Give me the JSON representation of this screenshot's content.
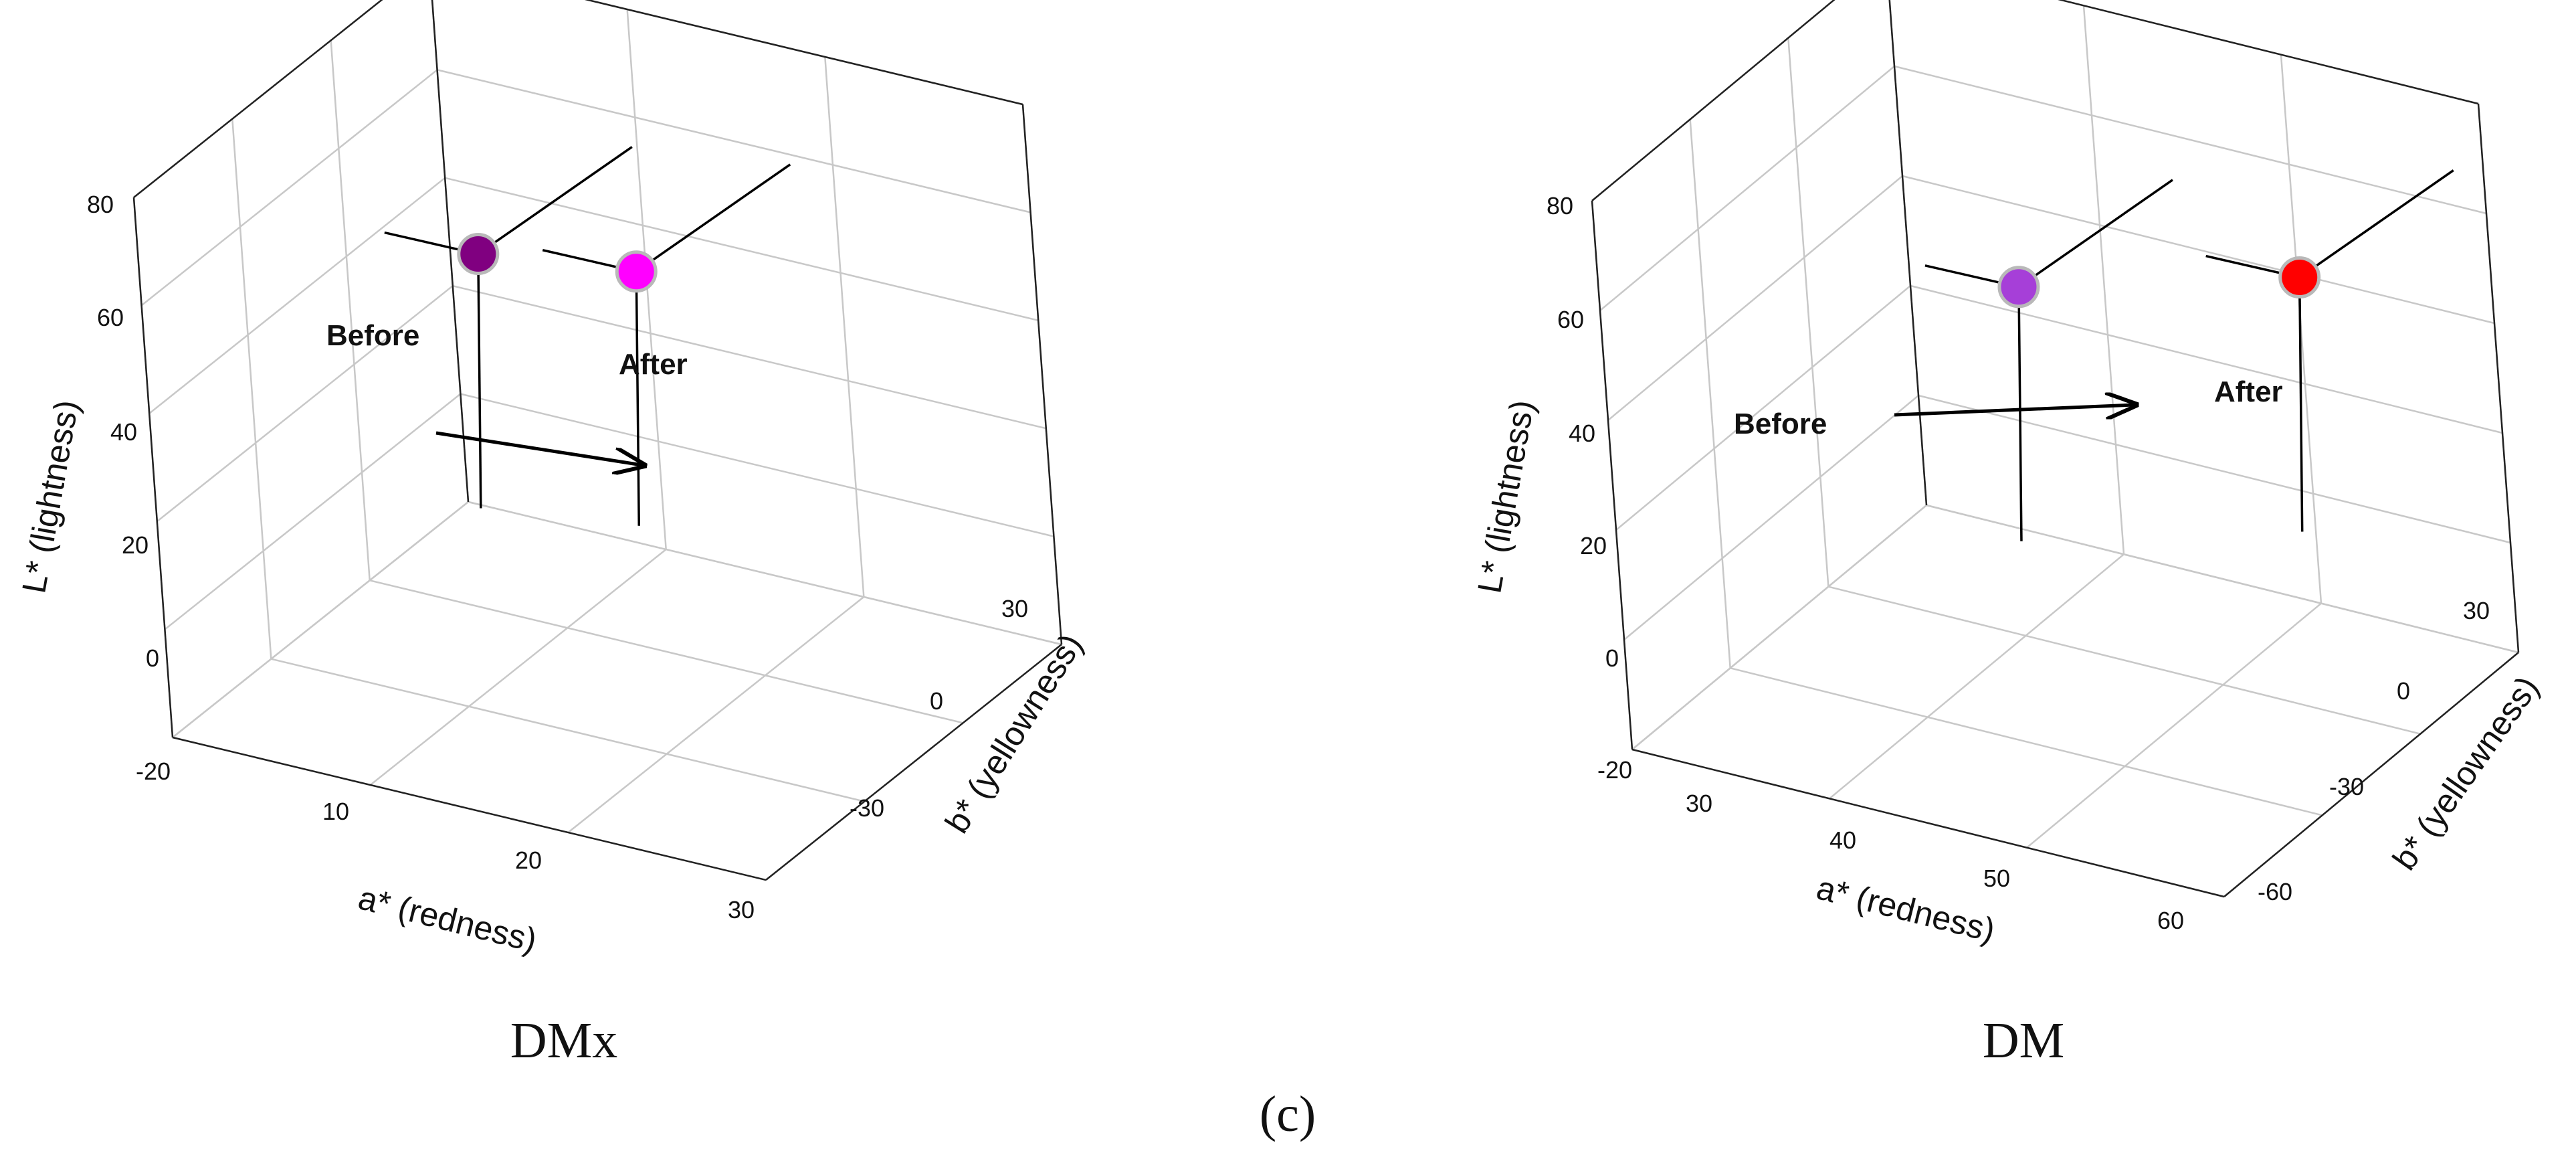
{
  "figure_label": "(c)",
  "colors": {
    "arrow": "#000000",
    "marker_outline": "#b9b9b9"
  },
  "chart_data": [
    {
      "type": "scatter",
      "projection": "3d",
      "panel_label": "DMx",
      "title": "",
      "xlabel": "a* (redness)",
      "ylabel": "b* (yellowness)",
      "zlabel": "L* (lightness)",
      "x_ticks": [
        "10",
        "20",
        "30"
      ],
      "y_ticks": [
        "-30",
        "0",
        "30"
      ],
      "z_ticks": [
        "-20",
        "0",
        "20",
        "40",
        "60",
        "80"
      ],
      "xlim": [
        0,
        30
      ],
      "ylim": [
        -60,
        30
      ],
      "zlim": [
        -20,
        80
      ],
      "grid": true,
      "points": [
        {
          "label": "Before",
          "a": 5,
          "b": 10,
          "L": 40,
          "color": "#800080"
        },
        {
          "label": "After",
          "a": 12,
          "b": 16,
          "L": 40,
          "color": "#ff00ff"
        }
      ],
      "arrow": {
        "from": "Before",
        "to": "After"
      }
    },
    {
      "type": "scatter",
      "projection": "3d",
      "panel_label": "DM",
      "title": "",
      "xlabel": "a* (redness)",
      "ylabel": "b* (yellowness)",
      "zlabel": "L* (lightness)",
      "x_ticks": [
        "30",
        "40",
        "50",
        "60"
      ],
      "y_ticks": [
        "-60",
        "-30",
        "0",
        "30"
      ],
      "z_ticks": [
        "-20",
        "0",
        "20",
        "40",
        "60",
        "80"
      ],
      "xlim": [
        20,
        60
      ],
      "ylim": [
        -90,
        30
      ],
      "zlim": [
        -20,
        80
      ],
      "grid": true,
      "points": [
        {
          "label": "Before",
          "a": 33,
          "b": -1,
          "L": 40,
          "color": "#a63fd8"
        },
        {
          "label": "After",
          "a": 47,
          "b": 29,
          "L": 40,
          "color": "#ff0000"
        }
      ],
      "arrow": {
        "from": "Before",
        "to": "After"
      }
    }
  ]
}
